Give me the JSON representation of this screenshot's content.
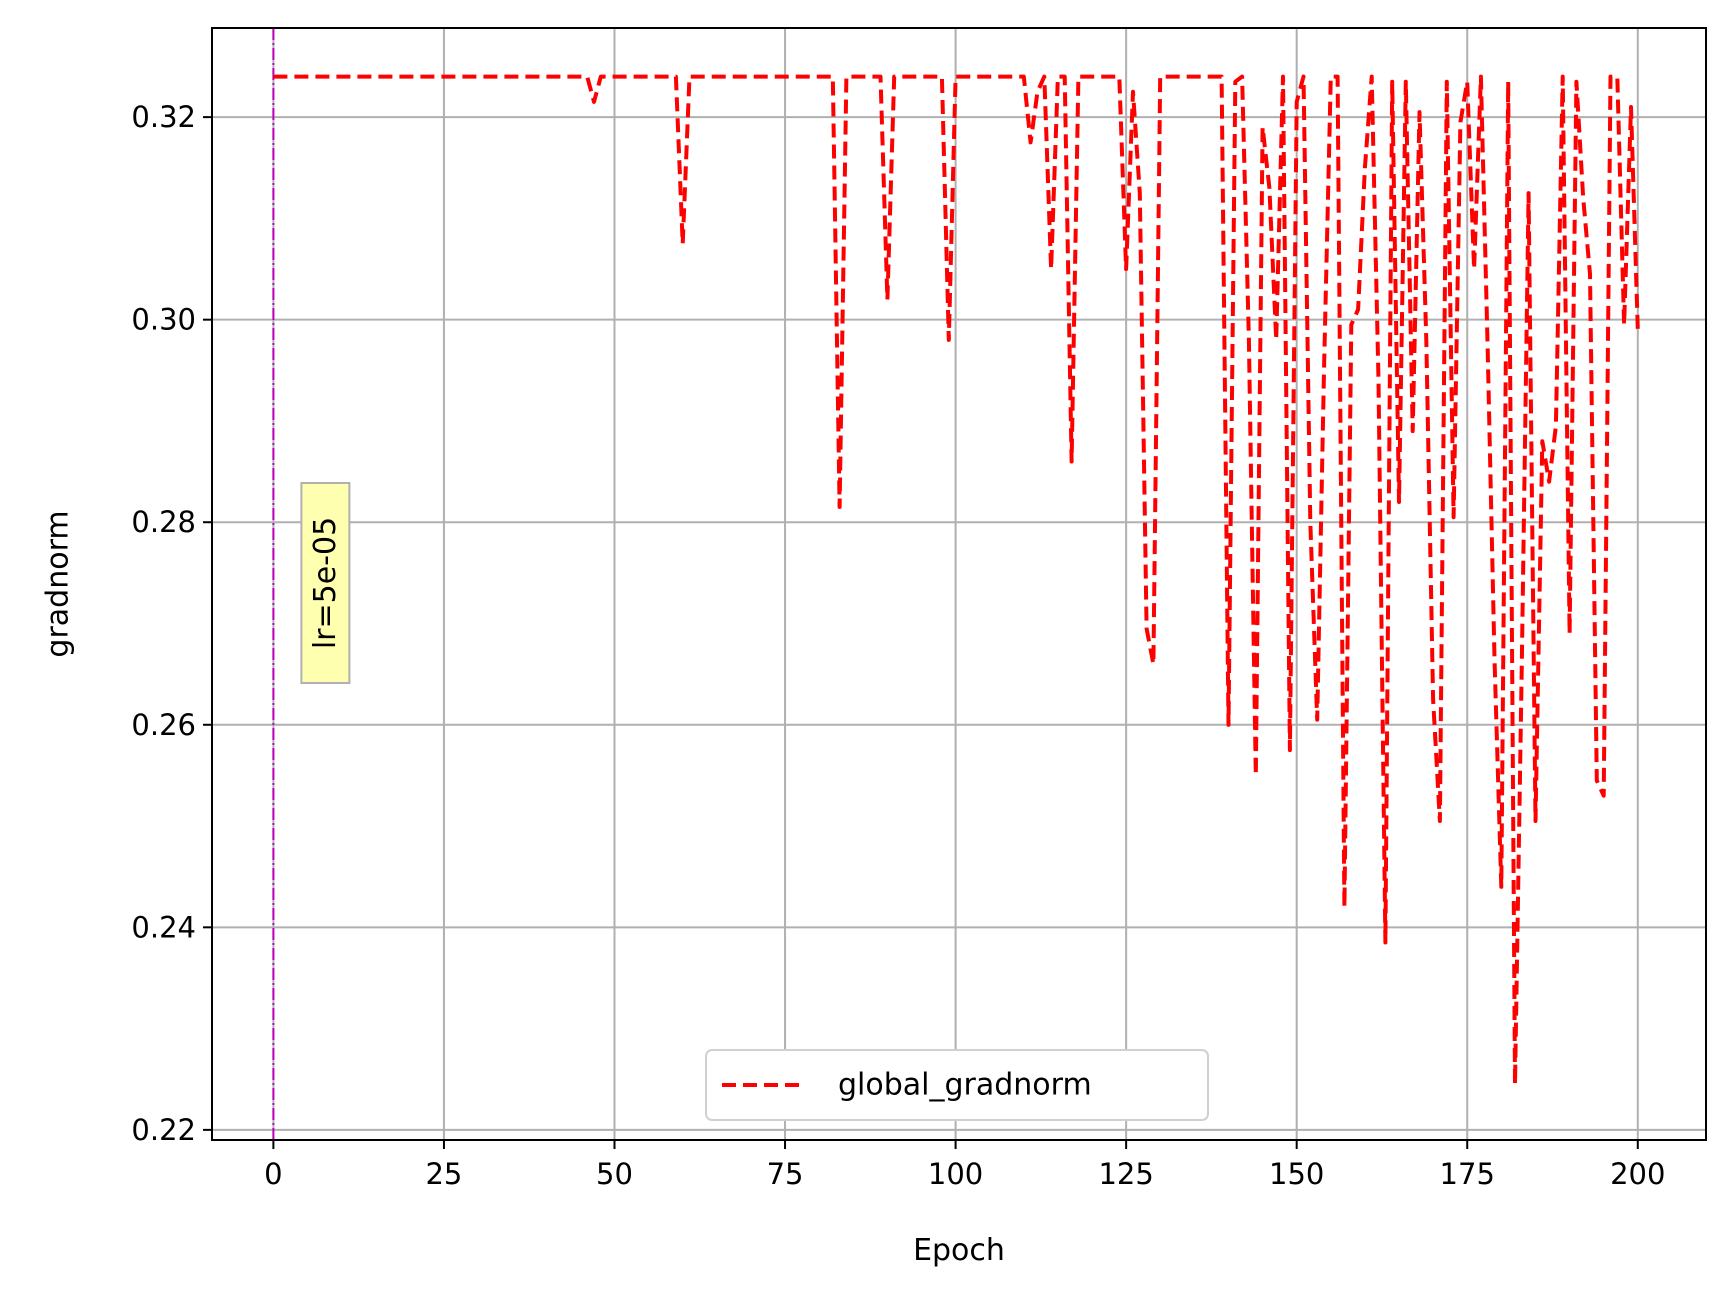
{
  "chart_data": {
    "type": "line",
    "title": "",
    "xlabel": "Epoch",
    "ylabel": "gradnorm",
    "xlim": [
      -9,
      210
    ],
    "ylim": [
      0.219,
      0.3288
    ],
    "xticks": [
      0,
      25,
      50,
      75,
      100,
      125,
      150,
      175,
      200
    ],
    "yticks": [
      0.22,
      0.24,
      0.26,
      0.28,
      0.3,
      0.32
    ],
    "xtick_labels": [
      "0",
      "25",
      "50",
      "75",
      "100",
      "125",
      "150",
      "175",
      "200"
    ],
    "ytick_labels": [
      "0.22",
      "0.24",
      "0.26",
      "0.28",
      "0.30",
      "0.32"
    ],
    "grid": true,
    "legend_position": "bottom-center",
    "series": [
      {
        "name": "global_gradnorm",
        "color": "#ff0000",
        "style": "dashed",
        "points": [
          [
            0,
            0.324
          ],
          [
            46,
            0.324
          ],
          [
            47,
            0.3215
          ],
          [
            48,
            0.324
          ],
          [
            59,
            0.324
          ],
          [
            60,
            0.3075
          ],
          [
            61,
            0.324
          ],
          [
            82,
            0.324
          ],
          [
            83,
            0.2815
          ],
          [
            84,
            0.324
          ],
          [
            89,
            0.324
          ],
          [
            90,
            0.302
          ],
          [
            91,
            0.324
          ],
          [
            98,
            0.324
          ],
          [
            99,
            0.298
          ],
          [
            100,
            0.324
          ],
          [
            110,
            0.324
          ],
          [
            111,
            0.3175
          ],
          [
            112,
            0.3225
          ],
          [
            113,
            0.324
          ],
          [
            114,
            0.305
          ],
          [
            115,
            0.324
          ],
          [
            116,
            0.324
          ],
          [
            117,
            0.286
          ],
          [
            118,
            0.324
          ],
          [
            124,
            0.324
          ],
          [
            125,
            0.305
          ],
          [
            126,
            0.3225
          ],
          [
            127,
            0.3125
          ],
          [
            128,
            0.2695
          ],
          [
            129,
            0.266
          ],
          [
            130,
            0.324
          ],
          [
            139,
            0.324
          ],
          [
            140,
            0.26
          ],
          [
            141,
            0.3235
          ],
          [
            142,
            0.324
          ],
          [
            143,
            0.298
          ],
          [
            144,
            0.255
          ],
          [
            145,
            0.319
          ],
          [
            146,
            0.313
          ],
          [
            147,
            0.298
          ],
          [
            148,
            0.324
          ],
          [
            149,
            0.2575
          ],
          [
            150,
            0.3215
          ],
          [
            151,
            0.324
          ],
          [
            152,
            0.28
          ],
          [
            153,
            0.2605
          ],
          [
            154,
            0.295
          ],
          [
            155,
            0.324
          ],
          [
            156,
            0.324
          ],
          [
            157,
            0.242
          ],
          [
            158,
            0.2995
          ],
          [
            159,
            0.301
          ],
          [
            160,
            0.315
          ],
          [
            161,
            0.324
          ],
          [
            162,
            0.294
          ],
          [
            163,
            0.2385
          ],
          [
            164,
            0.3235
          ],
          [
            165,
            0.282
          ],
          [
            166,
            0.3235
          ],
          [
            167,
            0.289
          ],
          [
            168,
            0.3205
          ],
          [
            169,
            0.298
          ],
          [
            170,
            0.2625
          ],
          [
            171,
            0.2505
          ],
          [
            172,
            0.3235
          ],
          [
            173,
            0.2805
          ],
          [
            174,
            0.3195
          ],
          [
            175,
            0.3235
          ],
          [
            176,
            0.305
          ],
          [
            177,
            0.324
          ],
          [
            178,
            0.297
          ],
          [
            179,
            0.2665
          ],
          [
            180,
            0.244
          ],
          [
            181,
            0.3235
          ],
          [
            182,
            0.2245
          ],
          [
            183,
            0.266
          ],
          [
            184,
            0.3125
          ],
          [
            185,
            0.2505
          ],
          [
            186,
            0.288
          ],
          [
            187,
            0.284
          ],
          [
            188,
            0.2895
          ],
          [
            189,
            0.324
          ],
          [
            190,
            0.269
          ],
          [
            191,
            0.3235
          ],
          [
            192,
            0.312
          ],
          [
            193,
            0.3045
          ],
          [
            194,
            0.2545
          ],
          [
            195,
            0.253
          ],
          [
            196,
            0.324
          ],
          [
            197,
            0.324
          ],
          [
            198,
            0.2995
          ],
          [
            199,
            0.321
          ],
          [
            200,
            0.299
          ]
        ]
      }
    ],
    "vline": {
      "x": 0,
      "color": "#bf00bf"
    },
    "annotation": {
      "text": "lr=5e-05",
      "x": 0,
      "y": 0.274,
      "rotation": 90,
      "background": "#ffffb0"
    }
  }
}
